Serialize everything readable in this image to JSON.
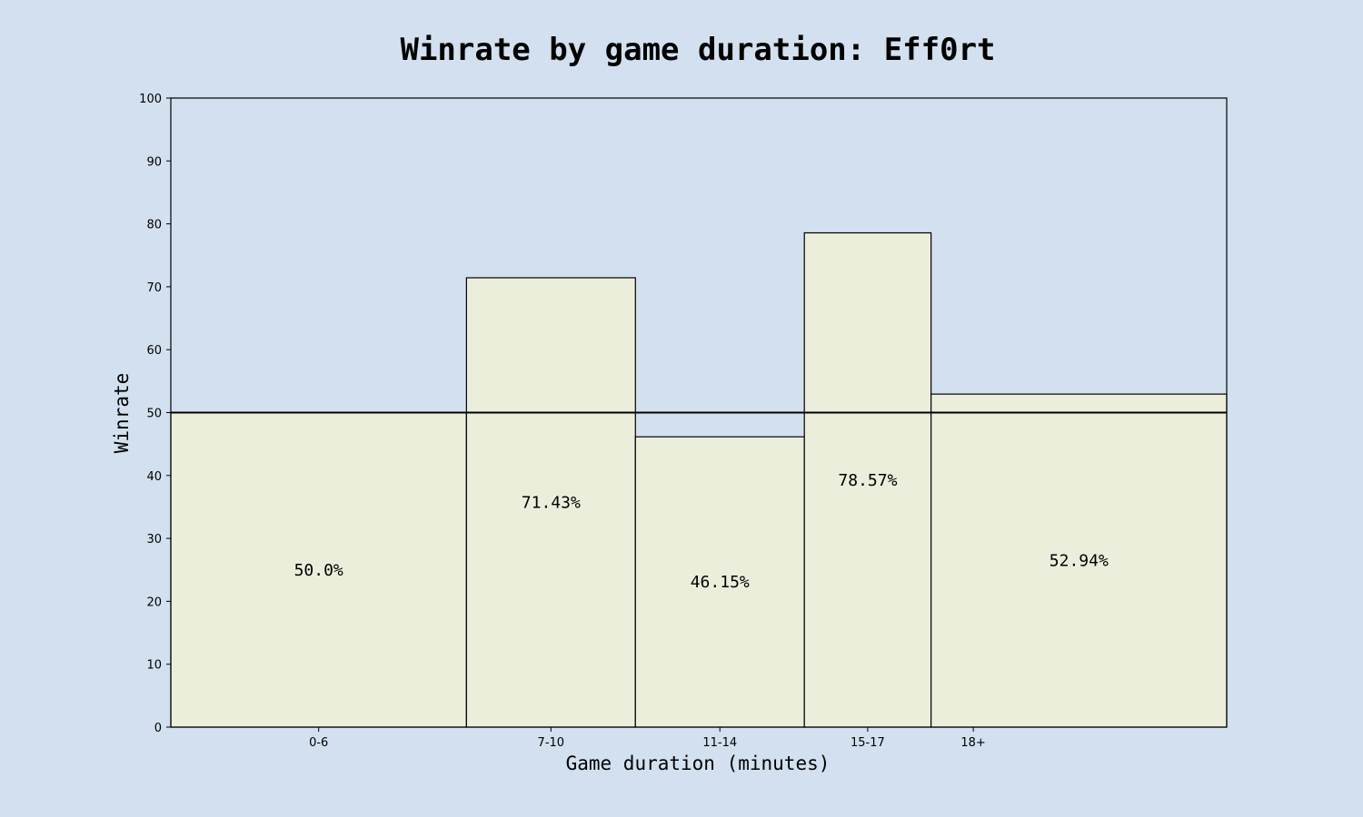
{
  "chart_data": {
    "type": "bar",
    "title": "Winrate by game duration: Eff0rt",
    "xlabel": "Game duration (minutes)",
    "ylabel": "Winrate",
    "ylim": [
      0,
      100
    ],
    "yticks": [
      0,
      10,
      20,
      30,
      40,
      50,
      60,
      70,
      80,
      90,
      100
    ],
    "xlim": [
      0,
      25
    ],
    "bins": [
      {
        "label": "0-6",
        "start": 0,
        "end": 7,
        "value": 50.0,
        "value_label": "50.0%"
      },
      {
        "label": "7-10",
        "start": 7,
        "end": 11,
        "value": 71.43,
        "value_label": "71.43%"
      },
      {
        "label": "11-14",
        "start": 11,
        "end": 15,
        "value": 46.15,
        "value_label": "46.15%"
      },
      {
        "label": "15-17",
        "start": 15,
        "end": 18,
        "value": 78.57,
        "value_label": "78.57%"
      },
      {
        "label": "18+",
        "start": 18,
        "end": 25,
        "value": 52.94,
        "value_label": "52.94%"
      }
    ],
    "reference_line": 50,
    "grid": false,
    "colors": {
      "background": "#d2e0ef",
      "bar_fill": "#eceedc",
      "bar_edge": "#000000",
      "text": "#000000"
    }
  }
}
